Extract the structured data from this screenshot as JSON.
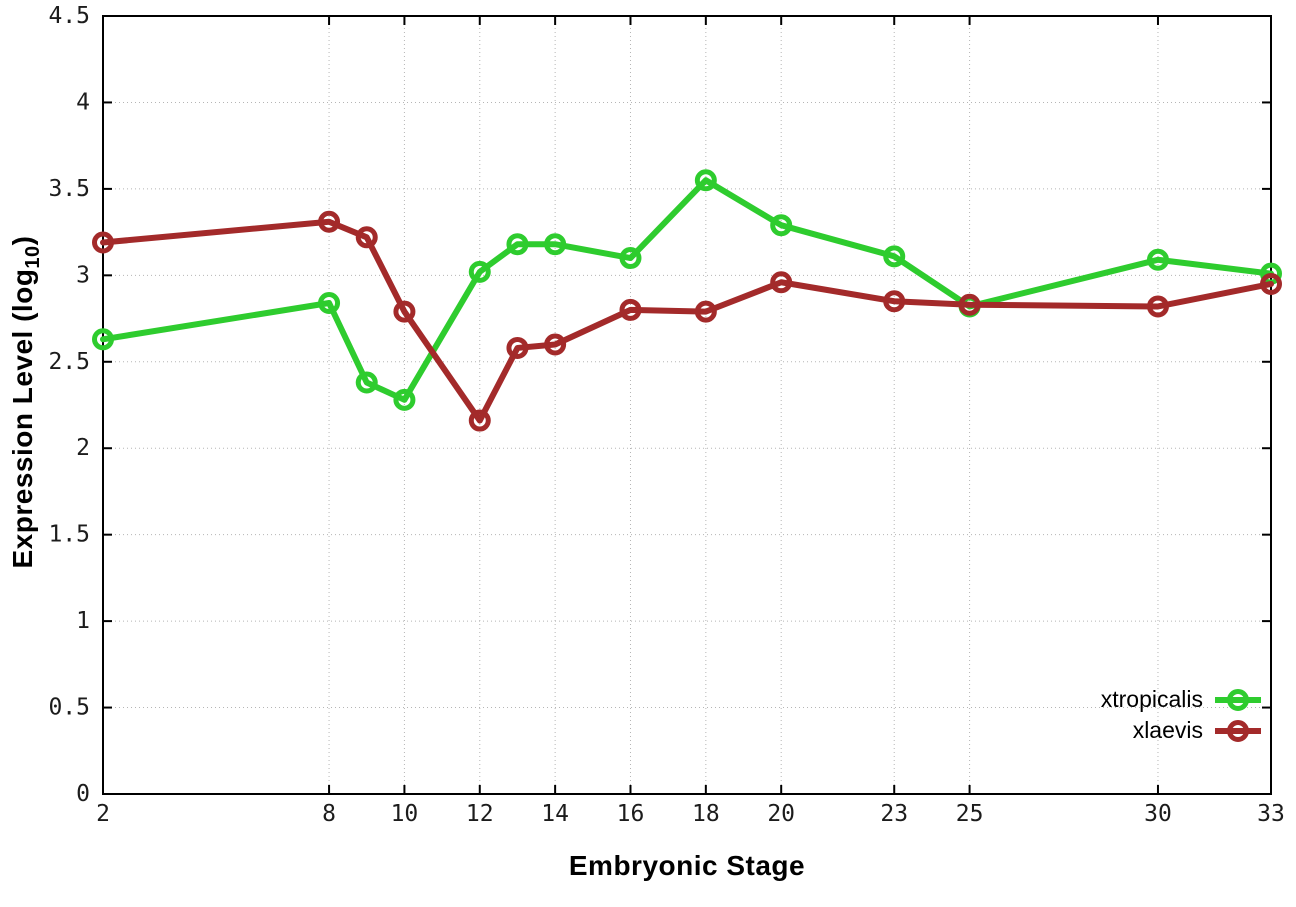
{
  "chart_data": {
    "type": "line",
    "xlabel": "Embryonic Stage",
    "ylabel": "Expression Level (log10)",
    "ylabel_parts": {
      "pre": "Expression Level (log",
      "sub": "10",
      "post": ")"
    },
    "xlim": [
      2,
      33
    ],
    "ylim": [
      0,
      4.5
    ],
    "x_ticks": [
      2,
      8,
      10,
      12,
      14,
      16,
      18,
      20,
      23,
      25,
      30,
      33
    ],
    "y_ticks": [
      "0",
      "0.5",
      "1",
      "1.5",
      "2",
      "2.5",
      "3",
      "3.5",
      "4",
      "4.5"
    ],
    "grid": true,
    "legend_position": "bottom-right",
    "marker": "open-circle",
    "x": [
      2,
      8,
      9,
      10,
      12,
      13,
      14,
      16,
      18,
      20,
      23,
      25,
      30,
      33
    ],
    "series": [
      {
        "name": "xtropicalis",
        "color": "#2ecc2e",
        "values": [
          2.63,
          2.84,
          2.38,
          2.28,
          3.02,
          3.18,
          3.18,
          3.1,
          3.55,
          3.29,
          3.11,
          2.82,
          3.09,
          3.01
        ]
      },
      {
        "name": "xlaevis",
        "color": "#a32a2a",
        "values": [
          3.19,
          3.31,
          3.22,
          2.79,
          2.16,
          2.58,
          2.6,
          2.8,
          2.79,
          2.96,
          2.85,
          2.83,
          2.82,
          2.95
        ]
      }
    ],
    "colors": {
      "grid": "#b5b5b5",
      "axis": "#000000",
      "tick_text": "#1c1c1c"
    },
    "background": "#ffffff"
  }
}
